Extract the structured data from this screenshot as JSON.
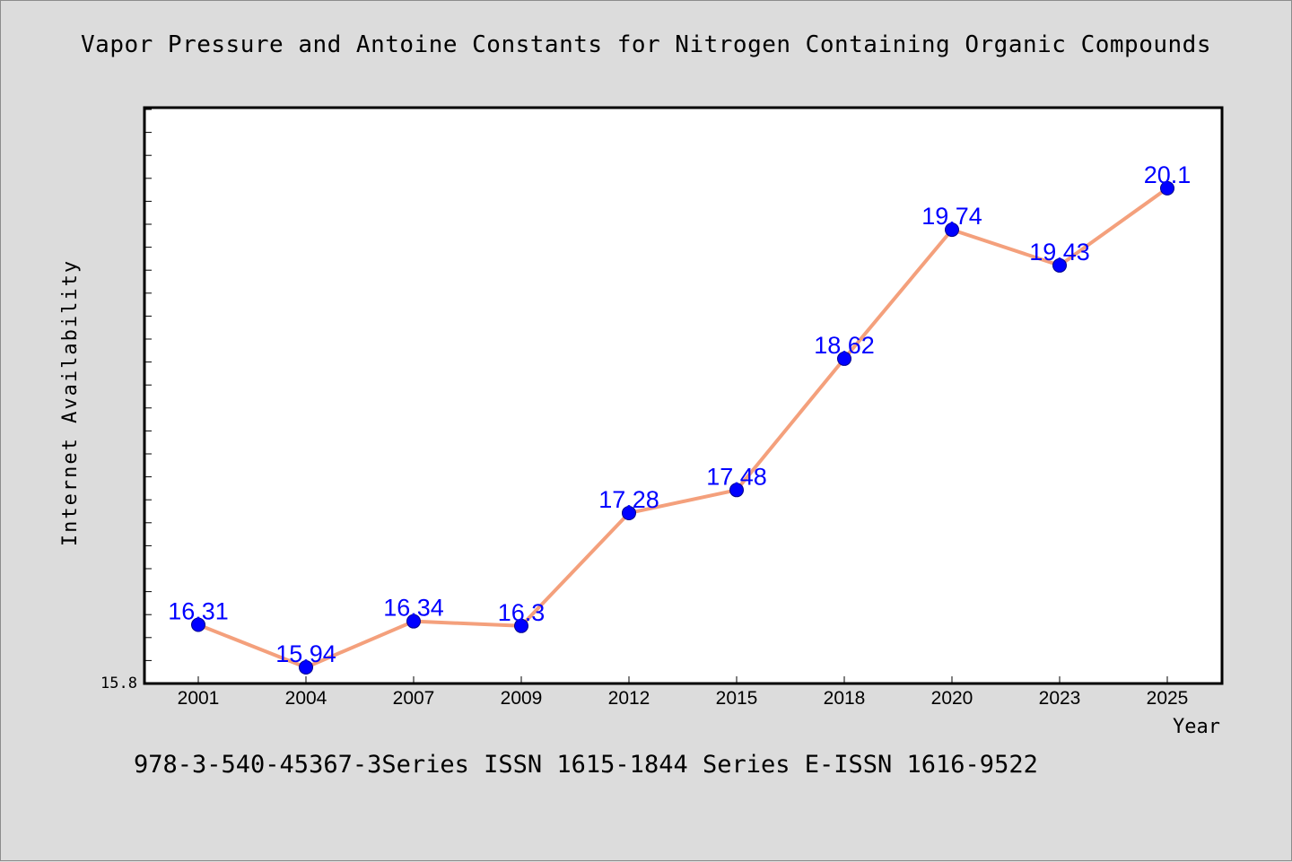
{
  "title": "Vapor Pressure and Antoine Constants for Nitrogen Containing Organic Compounds",
  "footer": "978-3-540-45367-3Series ISSN 1615-1844 Series E-ISSN 1616-9522",
  "colors": {
    "background": "#dcdcdc",
    "plot_area": "#ffffff",
    "line": "#f4a07c",
    "marker": "#0000ff",
    "data_label": "#0000ff",
    "axis": "#000000"
  },
  "chart_data": {
    "type": "line",
    "title": "Vapor Pressure and Antoine Constants for Nitrogen Containing Organic Compounds",
    "xlabel": "Year",
    "ylabel": "Internet Availability",
    "categories": [
      "2001",
      "2004",
      "2007",
      "2009",
      "2012",
      "2015",
      "2018",
      "2020",
      "2023",
      "2025"
    ],
    "series": [
      {
        "values": [
          16.31,
          15.94,
          16.34,
          16.3,
          17.28,
          17.48,
          18.62,
          19.74,
          19.43,
          20.1
        ],
        "labels": [
          "16.31",
          "15.94",
          "16.34",
          "16.3",
          "17.28",
          "17.48",
          "18.62",
          "19.74",
          "19.43",
          "20.1"
        ]
      }
    ],
    "ylim": [
      15.8,
      20.8
    ],
    "y_tick_labels": [
      "15.8"
    ],
    "grid": false,
    "legend": "none"
  }
}
